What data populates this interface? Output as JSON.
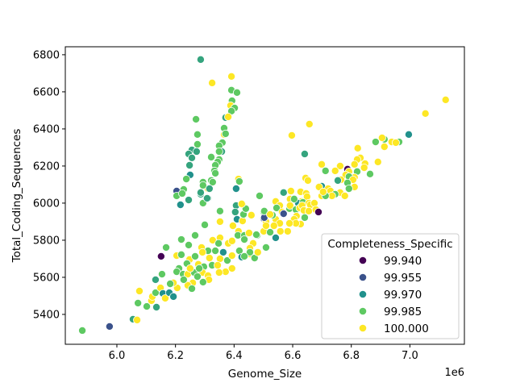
{
  "chart_data": {
    "type": "scatter",
    "title": "",
    "xlabel": "Genome_Size",
    "ylabel": "Total_Coding_Sequences",
    "x_offset_label": "1e6",
    "xlim": [
      5.824,
      7.186
    ],
    "ylim": [
      5239,
      6843
    ],
    "x_ticks": [
      6.0,
      6.2,
      6.4,
      6.6,
      6.8,
      7.0
    ],
    "x_tick_labels": [
      "6.0",
      "6.2",
      "6.4",
      "6.6",
      "6.8",
      "7.0"
    ],
    "y_ticks": [
      5400,
      5600,
      5800,
      6000,
      6200,
      6400,
      6600,
      6800
    ],
    "y_tick_labels": [
      "5400",
      "5600",
      "5800",
      "6000",
      "6200",
      "6400",
      "6600",
      "6800"
    ],
    "grid": false,
    "colormap": "viridis",
    "hue_range": [
      99.94,
      100.0
    ],
    "legend": {
      "title": "Completeness_Specific",
      "placement": "lower-right",
      "entries": [
        {
          "label": "99.940",
          "color": "#440154"
        },
        {
          "label": "99.955",
          "color": "#3b528b"
        },
        {
          "label": "99.970",
          "color": "#21918c"
        },
        {
          "label": "99.985",
          "color": "#5ec962"
        },
        {
          "label": "100.000",
          "color": "#fde725"
        }
      ]
    },
    "point_fields": [
      "Genome_Size (1e6)",
      "Total_Coding_Sequences",
      "Completeness_Specific"
    ],
    "points": [
      [
        5.882,
        5313,
        99.985
      ],
      [
        5.975,
        5335,
        99.955
      ],
      [
        6.055,
        5374,
        99.975
      ],
      [
        6.069,
        5370,
        100
      ],
      [
        6.072,
        5461,
        99.985
      ],
      [
        6.102,
        5443,
        99.985
      ],
      [
        6.077,
        5526,
        100
      ],
      [
        6.135,
        5439,
        99.975
      ],
      [
        6.118,
        5474,
        100
      ],
      [
        6.121,
        5496,
        100
      ],
      [
        6.132,
        5517,
        99.985
      ],
      [
        6.149,
        5543,
        100
      ],
      [
        6.157,
        5513,
        99.97
      ],
      [
        6.165,
        5487,
        100
      ],
      [
        6.179,
        5517,
        99.97
      ],
      [
        6.193,
        5496,
        99.97
      ],
      [
        6.132,
        5587,
        99.975
      ],
      [
        6.154,
        5617,
        99.985
      ],
      [
        6.151,
        5713,
        99.94
      ],
      [
        6.168,
        5761,
        99.985
      ],
      [
        6.22,
        5804,
        99.985
      ],
      [
        6.245,
        5774,
        99.985
      ],
      [
        6.267,
        5826,
        99.985
      ],
      [
        6.3,
        5883,
        99.985
      ],
      [
        6.352,
        5957,
        99.985
      ],
      [
        6.352,
        5900,
        100
      ],
      [
        6.217,
        5991,
        99.97
      ],
      [
        6.245,
        6017,
        99.975
      ],
      [
        6.294,
        6000,
        99.985
      ],
      [
        6.311,
        6026,
        99.975
      ],
      [
        6.286,
        6048,
        99.975
      ],
      [
        6.407,
        5987,
        99.975
      ],
      [
        6.404,
        5952,
        99.975
      ],
      [
        6.41,
        5913,
        99.97
      ],
      [
        6.429,
        5991,
        100
      ],
      [
        6.429,
        5904,
        100
      ],
      [
        6.432,
        5939,
        99.985
      ],
      [
        6.459,
        5935,
        100
      ],
      [
        6.487,
        6039,
        99.985
      ],
      [
        6.501,
        5952,
        99.985
      ],
      [
        6.501,
        5917,
        99.955
      ],
      [
        6.509,
        5900,
        100
      ],
      [
        6.396,
        5878,
        100
      ],
      [
        6.415,
        5848,
        100
      ],
      [
        6.413,
        5826,
        99.985
      ],
      [
        6.435,
        5826,
        99.985
      ],
      [
        6.451,
        5839,
        100
      ],
      [
        6.479,
        5826,
        99.985
      ],
      [
        6.501,
        5848,
        100
      ],
      [
        6.352,
        5813,
        100
      ],
      [
        6.327,
        5800,
        100
      ],
      [
        6.347,
        5783,
        99.985
      ],
      [
        6.38,
        5783,
        100
      ],
      [
        6.393,
        5796,
        100
      ],
      [
        6.363,
        5735,
        99.97
      ],
      [
        6.336,
        5743,
        99.985
      ],
      [
        6.311,
        5743,
        99.985
      ],
      [
        6.289,
        5761,
        100
      ],
      [
        6.292,
        5735,
        100
      ],
      [
        6.316,
        5704,
        100
      ],
      [
        6.352,
        5700,
        100
      ],
      [
        6.377,
        5691,
        99.985
      ],
      [
        6.393,
        5717,
        100
      ],
      [
        6.418,
        5743,
        99.985
      ],
      [
        6.426,
        5709,
        99.97
      ],
      [
        6.454,
        5726,
        100
      ],
      [
        6.47,
        5704,
        99.985
      ],
      [
        6.204,
        5717,
        100
      ],
      [
        6.22,
        5722,
        99.985
      ],
      [
        6.248,
        5696,
        100
      ],
      [
        6.267,
        5713,
        99.985
      ],
      [
        6.278,
        5670,
        100
      ],
      [
        6.297,
        5657,
        99.985
      ],
      [
        6.325,
        5665,
        99.985
      ],
      [
        6.344,
        5665,
        100
      ],
      [
        6.371,
        5630,
        100
      ],
      [
        6.349,
        5626,
        100
      ],
      [
        6.393,
        5648,
        100
      ],
      [
        6.239,
        5674,
        99.985
      ],
      [
        6.212,
        5648,
        99.985
      ],
      [
        6.204,
        5630,
        99.985
      ],
      [
        6.226,
        5617,
        99.985
      ],
      [
        6.242,
        5617,
        100
      ],
      [
        6.264,
        5626,
        99.985
      ],
      [
        6.292,
        5626,
        100
      ],
      [
        6.311,
        5609,
        100
      ],
      [
        6.314,
        5587,
        100
      ],
      [
        6.294,
        5574,
        99.985
      ],
      [
        6.259,
        5570,
        100
      ],
      [
        6.242,
        5557,
        100
      ],
      [
        6.256,
        5539,
        99.985
      ],
      [
        6.206,
        5543,
        100
      ],
      [
        6.193,
        5570,
        100
      ],
      [
        6.182,
        5565,
        99.985
      ],
      [
        6.228,
        5587,
        99.985
      ],
      [
        6.275,
        5604,
        99.985
      ],
      [
        6.25,
        5648,
        100
      ],
      [
        6.281,
        5648,
        99.985
      ],
      [
        6.286,
        6774,
        99.975
      ],
      [
        6.325,
        6648,
        100
      ],
      [
        6.391,
        6683,
        100
      ],
      [
        6.391,
        6609,
        99.985
      ],
      [
        6.41,
        6596,
        99.985
      ],
      [
        6.393,
        6552,
        99.985
      ],
      [
        6.388,
        6526,
        100
      ],
      [
        6.402,
        6513,
        99.985
      ],
      [
        6.391,
        6496,
        99.985
      ],
      [
        6.371,
        6461,
        99.975
      ],
      [
        6.38,
        6465,
        100
      ],
      [
        6.27,
        6452,
        99.985
      ],
      [
        6.366,
        6404,
        99.985
      ],
      [
        6.275,
        6370,
        99.985
      ],
      [
        6.366,
        6370,
        100
      ],
      [
        6.371,
        6374,
        99.985
      ],
      [
        6.275,
        6317,
        99.985
      ],
      [
        6.36,
        6326,
        99.985
      ],
      [
        6.349,
        6309,
        99.985
      ],
      [
        6.358,
        6278,
        99.975
      ],
      [
        6.349,
        6278,
        99.985
      ],
      [
        6.256,
        6287,
        99.975
      ],
      [
        6.245,
        6265,
        99.975
      ],
      [
        6.272,
        6278,
        99.975
      ],
      [
        6.256,
        6244,
        99.975
      ],
      [
        6.322,
        6248,
        99.985
      ],
      [
        6.349,
        6235,
        99.985
      ],
      [
        6.344,
        6222,
        99.985
      ],
      [
        6.248,
        6204,
        99.975
      ],
      [
        6.336,
        6204,
        99.985
      ],
      [
        6.333,
        6174,
        99.985
      ],
      [
        6.25,
        6152,
        99.97
      ],
      [
        6.336,
        6161,
        99.985
      ],
      [
        6.237,
        6130,
        99.985
      ],
      [
        6.294,
        6113,
        99.985
      ],
      [
        6.322,
        6122,
        99.985
      ],
      [
        6.327,
        6113,
        99.985
      ],
      [
        6.415,
        6130,
        100
      ],
      [
        6.418,
        6117,
        99.985
      ],
      [
        6.407,
        6078,
        99.97
      ],
      [
        6.311,
        6078,
        100
      ],
      [
        6.294,
        6096,
        99.985
      ],
      [
        6.316,
        6078,
        99.975
      ],
      [
        6.286,
        6057,
        99.975
      ],
      [
        6.308,
        6026,
        99.975
      ],
      [
        6.204,
        6065,
        99.955
      ],
      [
        6.228,
        6074,
        99.985
      ],
      [
        6.204,
        6039,
        99.985
      ],
      [
        6.223,
        6052,
        99.985
      ],
      [
        7.122,
        6557,
        100
      ],
      [
        7.053,
        6483,
        100
      ],
      [
        6.996,
        6370,
        99.97
      ],
      [
        6.963,
        6330,
        99.985
      ],
      [
        6.883,
        6330,
        99.985
      ],
      [
        6.913,
        6344,
        99.985
      ],
      [
        6.905,
        6352,
        100
      ],
      [
        6.938,
        6330,
        100
      ],
      [
        6.952,
        6326,
        100
      ],
      [
        6.913,
        6304,
        100
      ],
      [
        6.822,
        6296,
        100
      ],
      [
        6.657,
        6426,
        100
      ],
      [
        6.597,
        6365,
        100
      ],
      [
        6.641,
        6265,
        99.975
      ],
      [
        6.831,
        6244,
        100
      ],
      [
        6.891,
        6222,
        100
      ],
      [
        6.699,
        6209,
        100
      ],
      [
        6.762,
        6200,
        100
      ],
      [
        6.787,
        6183,
        99.94
      ],
      [
        6.712,
        6174,
        99.985
      ],
      [
        6.745,
        6174,
        100
      ],
      [
        6.82,
        6235,
        100
      ],
      [
        6.811,
        6209,
        100
      ],
      [
        6.847,
        6213,
        100
      ],
      [
        6.844,
        6191,
        100
      ],
      [
        6.82,
        6170,
        99.985
      ],
      [
        6.864,
        6157,
        99.985
      ],
      [
        6.792,
        6170,
        100
      ],
      [
        6.781,
        6152,
        100
      ],
      [
        6.811,
        6139,
        100
      ],
      [
        6.792,
        6143,
        99.985
      ],
      [
        6.765,
        6126,
        100
      ],
      [
        6.806,
        6126,
        100
      ],
      [
        6.644,
        6135,
        100
      ],
      [
        6.652,
        6122,
        100
      ],
      [
        6.699,
        6091,
        99.97
      ],
      [
        6.69,
        6087,
        100
      ],
      [
        6.754,
        6122,
        99.975
      ],
      [
        6.787,
        6109,
        99.985
      ],
      [
        6.811,
        6087,
        100
      ],
      [
        6.792,
        6078,
        99.985
      ],
      [
        6.721,
        6078,
        100
      ],
      [
        6.729,
        6065,
        100
      ],
      [
        6.762,
        6057,
        100
      ],
      [
        6.778,
        6039,
        100
      ],
      [
        6.745,
        6048,
        99.985
      ],
      [
        6.734,
        6039,
        100
      ],
      [
        6.699,
        6039,
        100
      ],
      [
        6.712,
        6039,
        99.985
      ],
      [
        6.704,
        6061,
        100
      ],
      [
        6.569,
        6057,
        99.975
      ],
      [
        6.594,
        6065,
        100
      ],
      [
        6.627,
        6061,
        100
      ],
      [
        6.646,
        6052,
        100
      ],
      [
        6.649,
        6035,
        100
      ],
      [
        6.63,
        6009,
        100
      ],
      [
        6.619,
        6000,
        99.97
      ],
      [
        6.635,
        6004,
        99.985
      ],
      [
        6.655,
        6000,
        100
      ],
      [
        6.591,
        6022,
        100
      ],
      [
        6.605,
        6022,
        99.985
      ],
      [
        6.542,
        6009,
        100
      ],
      [
        6.556,
        5987,
        100
      ],
      [
        6.545,
        5974,
        99.985
      ],
      [
        6.564,
        5952,
        100
      ],
      [
        6.589,
        5970,
        99.985
      ],
      [
        6.591,
        5987,
        100
      ],
      [
        6.611,
        5965,
        99.985
      ],
      [
        6.624,
        5974,
        100
      ],
      [
        6.632,
        5987,
        100
      ],
      [
        6.66,
        5991,
        100
      ],
      [
        6.674,
        6000,
        100
      ],
      [
        6.638,
        5961,
        100
      ],
      [
        6.655,
        5957,
        100
      ],
      [
        6.679,
        5965,
        100
      ],
      [
        6.688,
        5952,
        99.94
      ],
      [
        6.641,
        5922,
        99.985
      ],
      [
        6.627,
        5887,
        100
      ],
      [
        6.613,
        5930,
        100
      ],
      [
        6.605,
        5913,
        100
      ],
      [
        6.611,
        5891,
        100
      ],
      [
        6.589,
        5891,
        100
      ],
      [
        6.583,
        5848,
        100
      ],
      [
        6.558,
        5848,
        100
      ],
      [
        6.569,
        5943,
        99.955
      ],
      [
        6.542,
        5913,
        100
      ],
      [
        6.556,
        5891,
        100
      ],
      [
        6.531,
        5935,
        99.985
      ],
      [
        6.503,
        5922,
        99.955
      ],
      [
        6.503,
        5957,
        99.985
      ],
      [
        6.523,
        5939,
        100
      ],
      [
        6.44,
        5970,
        99.985
      ],
      [
        6.426,
        5996,
        100
      ],
      [
        6.542,
        5813,
        99.97
      ],
      [
        6.523,
        5843,
        99.985
      ],
      [
        6.509,
        5878,
        100
      ],
      [
        6.536,
        5878,
        100
      ],
      [
        6.476,
        5830,
        99.985
      ],
      [
        6.465,
        5783,
        100
      ],
      [
        6.509,
        5761,
        99.985
      ],
      [
        6.454,
        5757,
        100
      ],
      [
        6.454,
        5735,
        99.985
      ],
      [
        6.435,
        5713,
        99.985
      ],
      [
        6.481,
        5735,
        100
      ],
      [
        6.435,
        5804,
        99.985
      ]
    ]
  }
}
